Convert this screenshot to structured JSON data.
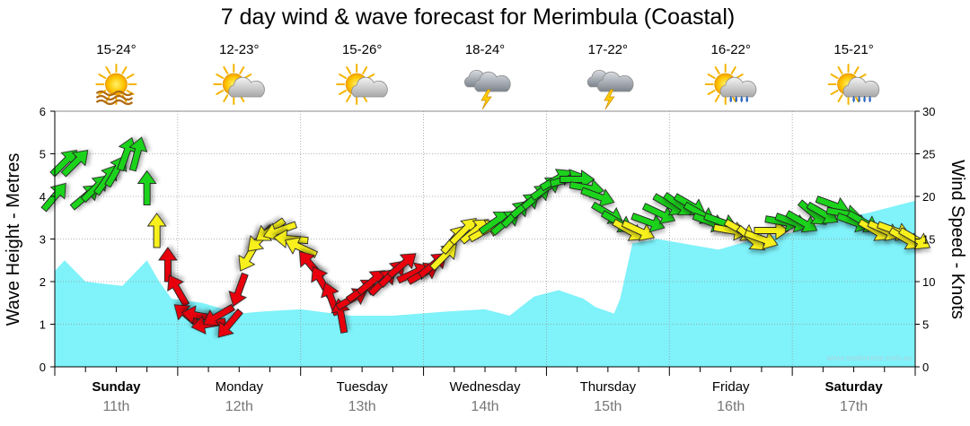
{
  "chart_data": {
    "type": "area+wind-arrows",
    "title": "7 day wind & wave forecast for Merimbula (Coastal)",
    "ylabel_left": "Wave Height - Metres",
    "ylabel_right": "Wind Speed - Knots",
    "y_left_range": [
      0,
      6
    ],
    "y_left_ticks": [
      "0",
      "1",
      "2",
      "3",
      "4",
      "5",
      "6"
    ],
    "y_right_range": [
      0,
      30
    ],
    "y_right_ticks": [
      "0",
      "5",
      "10",
      "15",
      "20",
      "25",
      "30"
    ],
    "watermark": "www.seabreeze.com.au",
    "days": [
      {
        "name": "Sunday",
        "date": "11th",
        "temp": "15-24°",
        "icon": "sunny-hazy-icon",
        "bold": true
      },
      {
        "name": "Monday",
        "date": "12th",
        "temp": "12-23°",
        "icon": "partly-cloudy-icon",
        "bold": false
      },
      {
        "name": "Tuesday",
        "date": "13th",
        "temp": "15-26°",
        "icon": "partly-cloudy-icon",
        "bold": false
      },
      {
        "name": "Wednesday",
        "date": "14th",
        "temp": "18-24°",
        "icon": "storm-icon",
        "bold": false
      },
      {
        "name": "Thursday",
        "date": "15th",
        "temp": "17-22°",
        "icon": "storm-icon",
        "bold": false
      },
      {
        "name": "Friday",
        "date": "16th",
        "temp": "16-22°",
        "icon": "sun-showers-icon",
        "bold": false
      },
      {
        "name": "Saturday",
        "date": "17th",
        "temp": "15-21°",
        "icon": "sun-showers-icon",
        "bold": true
      }
    ],
    "wave_height_m": {
      "x_days": [
        0,
        0.08,
        0.25,
        0.55,
        0.75,
        0.85,
        0.95,
        1.2,
        1.5,
        1.7,
        2.0,
        2.4,
        2.75,
        3.2,
        3.5,
        3.7,
        3.9,
        4.1,
        4.3,
        4.4,
        4.55,
        4.6,
        4.7,
        4.9,
        5.2,
        5.4,
        5.7,
        6.0,
        6.4,
        6.6,
        7.0
      ],
      "values": [
        2.25,
        2.5,
        2.0,
        1.9,
        2.5,
        2.0,
        1.6,
        1.5,
        1.25,
        1.3,
        1.35,
        1.2,
        1.2,
        1.3,
        1.35,
        1.2,
        1.65,
        1.8,
        1.6,
        1.4,
        1.25,
        1.6,
        2.9,
        3.0,
        2.85,
        2.75,
        3.0,
        3.15,
        3.5,
        3.6,
        3.9
      ]
    },
    "wind": [
      {
        "t": 0.0,
        "speed": 20,
        "dir": 220
      },
      {
        "t": 0.08,
        "speed": 24,
        "dir": 225
      },
      {
        "t": 0.17,
        "speed": 24,
        "dir": 225
      },
      {
        "t": 0.25,
        "speed": 20,
        "dir": 230
      },
      {
        "t": 0.33,
        "speed": 21,
        "dir": 225
      },
      {
        "t": 0.42,
        "speed": 22,
        "dir": 215
      },
      {
        "t": 0.5,
        "speed": 23,
        "dir": 210
      },
      {
        "t": 0.58,
        "speed": 25,
        "dir": 200
      },
      {
        "t": 0.67,
        "speed": 25,
        "dir": 195
      },
      {
        "t": 0.75,
        "speed": 21,
        "dir": 180
      },
      {
        "t": 0.83,
        "speed": 16,
        "dir": 180
      },
      {
        "t": 0.92,
        "speed": 12,
        "dir": 180
      },
      {
        "t": 1.0,
        "speed": 9,
        "dir": 150
      },
      {
        "t": 1.08,
        "speed": 6,
        "dir": 130
      },
      {
        "t": 1.17,
        "speed": 6,
        "dir": 100
      },
      {
        "t": 1.25,
        "speed": 5,
        "dir": 80
      },
      {
        "t": 1.33,
        "speed": 6,
        "dir": 60
      },
      {
        "t": 1.42,
        "speed": 5,
        "dir": 40
      },
      {
        "t": 1.5,
        "speed": 9,
        "dir": 20
      },
      {
        "t": 1.58,
        "speed": 13,
        "dir": 30
      },
      {
        "t": 1.67,
        "speed": 15,
        "dir": 45
      },
      {
        "t": 1.75,
        "speed": 16,
        "dir": 55
      },
      {
        "t": 1.83,
        "speed": 16,
        "dir": 70
      },
      {
        "t": 1.92,
        "speed": 15,
        "dir": 95
      },
      {
        "t": 2.0,
        "speed": 14,
        "dir": 115
      },
      {
        "t": 2.08,
        "speed": 12,
        "dir": 140
      },
      {
        "t": 2.17,
        "speed": 10,
        "dir": 150
      },
      {
        "t": 2.25,
        "speed": 8,
        "dir": 160
      },
      {
        "t": 2.33,
        "speed": 6,
        "dir": 170
      },
      {
        "t": 2.42,
        "speed": 8,
        "dir": 240
      },
      {
        "t": 2.5,
        "speed": 9,
        "dir": 235
      },
      {
        "t": 2.58,
        "speed": 10,
        "dir": 230
      },
      {
        "t": 2.67,
        "speed": 10,
        "dir": 225
      },
      {
        "t": 2.75,
        "speed": 11,
        "dir": 225
      },
      {
        "t": 2.83,
        "speed": 12,
        "dir": 230
      },
      {
        "t": 2.92,
        "speed": 11,
        "dir": 245
      },
      {
        "t": 3.0,
        "speed": 11,
        "dir": 240
      },
      {
        "t": 3.08,
        "speed": 12,
        "dir": 230
      },
      {
        "t": 3.17,
        "speed": 13,
        "dir": 225
      },
      {
        "t": 3.25,
        "speed": 15,
        "dir": 220
      },
      {
        "t": 3.33,
        "speed": 16,
        "dir": 225
      },
      {
        "t": 3.42,
        "speed": 16,
        "dir": 230
      },
      {
        "t": 3.5,
        "speed": 16,
        "dir": 240
      },
      {
        "t": 3.58,
        "speed": 17,
        "dir": 235
      },
      {
        "t": 3.67,
        "speed": 17,
        "dir": 230
      },
      {
        "t": 3.75,
        "speed": 18,
        "dir": 225
      },
      {
        "t": 3.83,
        "speed": 19,
        "dir": 230
      },
      {
        "t": 3.92,
        "speed": 20,
        "dir": 230
      },
      {
        "t": 4.0,
        "speed": 21,
        "dir": 235
      },
      {
        "t": 4.08,
        "speed": 22,
        "dir": 240
      },
      {
        "t": 4.17,
        "speed": 22,
        "dir": 255
      },
      {
        "t": 4.25,
        "speed": 22,
        "dir": 270
      },
      {
        "t": 4.33,
        "speed": 21,
        "dir": 280
      },
      {
        "t": 4.42,
        "speed": 20,
        "dir": 290
      },
      {
        "t": 4.5,
        "speed": 18,
        "dir": 300
      },
      {
        "t": 4.58,
        "speed": 17,
        "dir": 300
      },
      {
        "t": 4.67,
        "speed": 16,
        "dir": 300
      },
      {
        "t": 4.75,
        "speed": 16,
        "dir": 295
      },
      {
        "t": 4.83,
        "speed": 17,
        "dir": 290
      },
      {
        "t": 4.92,
        "speed": 18,
        "dir": 295
      },
      {
        "t": 5.0,
        "speed": 19,
        "dir": 300
      },
      {
        "t": 5.08,
        "speed": 19,
        "dir": 305
      },
      {
        "t": 5.17,
        "speed": 19,
        "dir": 300
      },
      {
        "t": 5.25,
        "speed": 18,
        "dir": 300
      },
      {
        "t": 5.33,
        "speed": 17,
        "dir": 290
      },
      {
        "t": 5.42,
        "speed": 17,
        "dir": 290
      },
      {
        "t": 5.5,
        "speed": 16,
        "dir": 280
      },
      {
        "t": 5.58,
        "speed": 16,
        "dir": 300
      },
      {
        "t": 5.67,
        "speed": 15,
        "dir": 310
      },
      {
        "t": 5.75,
        "speed": 15,
        "dir": 290
      },
      {
        "t": 5.83,
        "speed": 16,
        "dir": 270
      },
      {
        "t": 5.92,
        "speed": 17,
        "dir": 280
      },
      {
        "t": 6.0,
        "speed": 17,
        "dir": 290
      },
      {
        "t": 6.08,
        "speed": 17,
        "dir": 300
      },
      {
        "t": 6.17,
        "speed": 18,
        "dir": 310
      },
      {
        "t": 6.25,
        "speed": 18,
        "dir": 300
      },
      {
        "t": 6.33,
        "speed": 19,
        "dir": 290
      },
      {
        "t": 6.42,
        "speed": 18,
        "dir": 280
      },
      {
        "t": 6.5,
        "speed": 17,
        "dir": 290
      },
      {
        "t": 6.58,
        "speed": 17,
        "dir": 300
      },
      {
        "t": 6.67,
        "speed": 16,
        "dir": 300
      },
      {
        "t": 6.75,
        "speed": 16,
        "dir": 295
      },
      {
        "t": 6.83,
        "speed": 16,
        "dir": 290
      },
      {
        "t": 6.92,
        "speed": 15,
        "dir": 300
      },
      {
        "t": 7.0,
        "speed": 15,
        "dir": 300
      }
    ]
  },
  "colors": {
    "wave_fill": "#7ff2fa",
    "wind_strong": "#1fd31f",
    "wind_moderate": "#f7f01c",
    "wind_light": "#e8000b",
    "grid": "#9a9a9a"
  }
}
